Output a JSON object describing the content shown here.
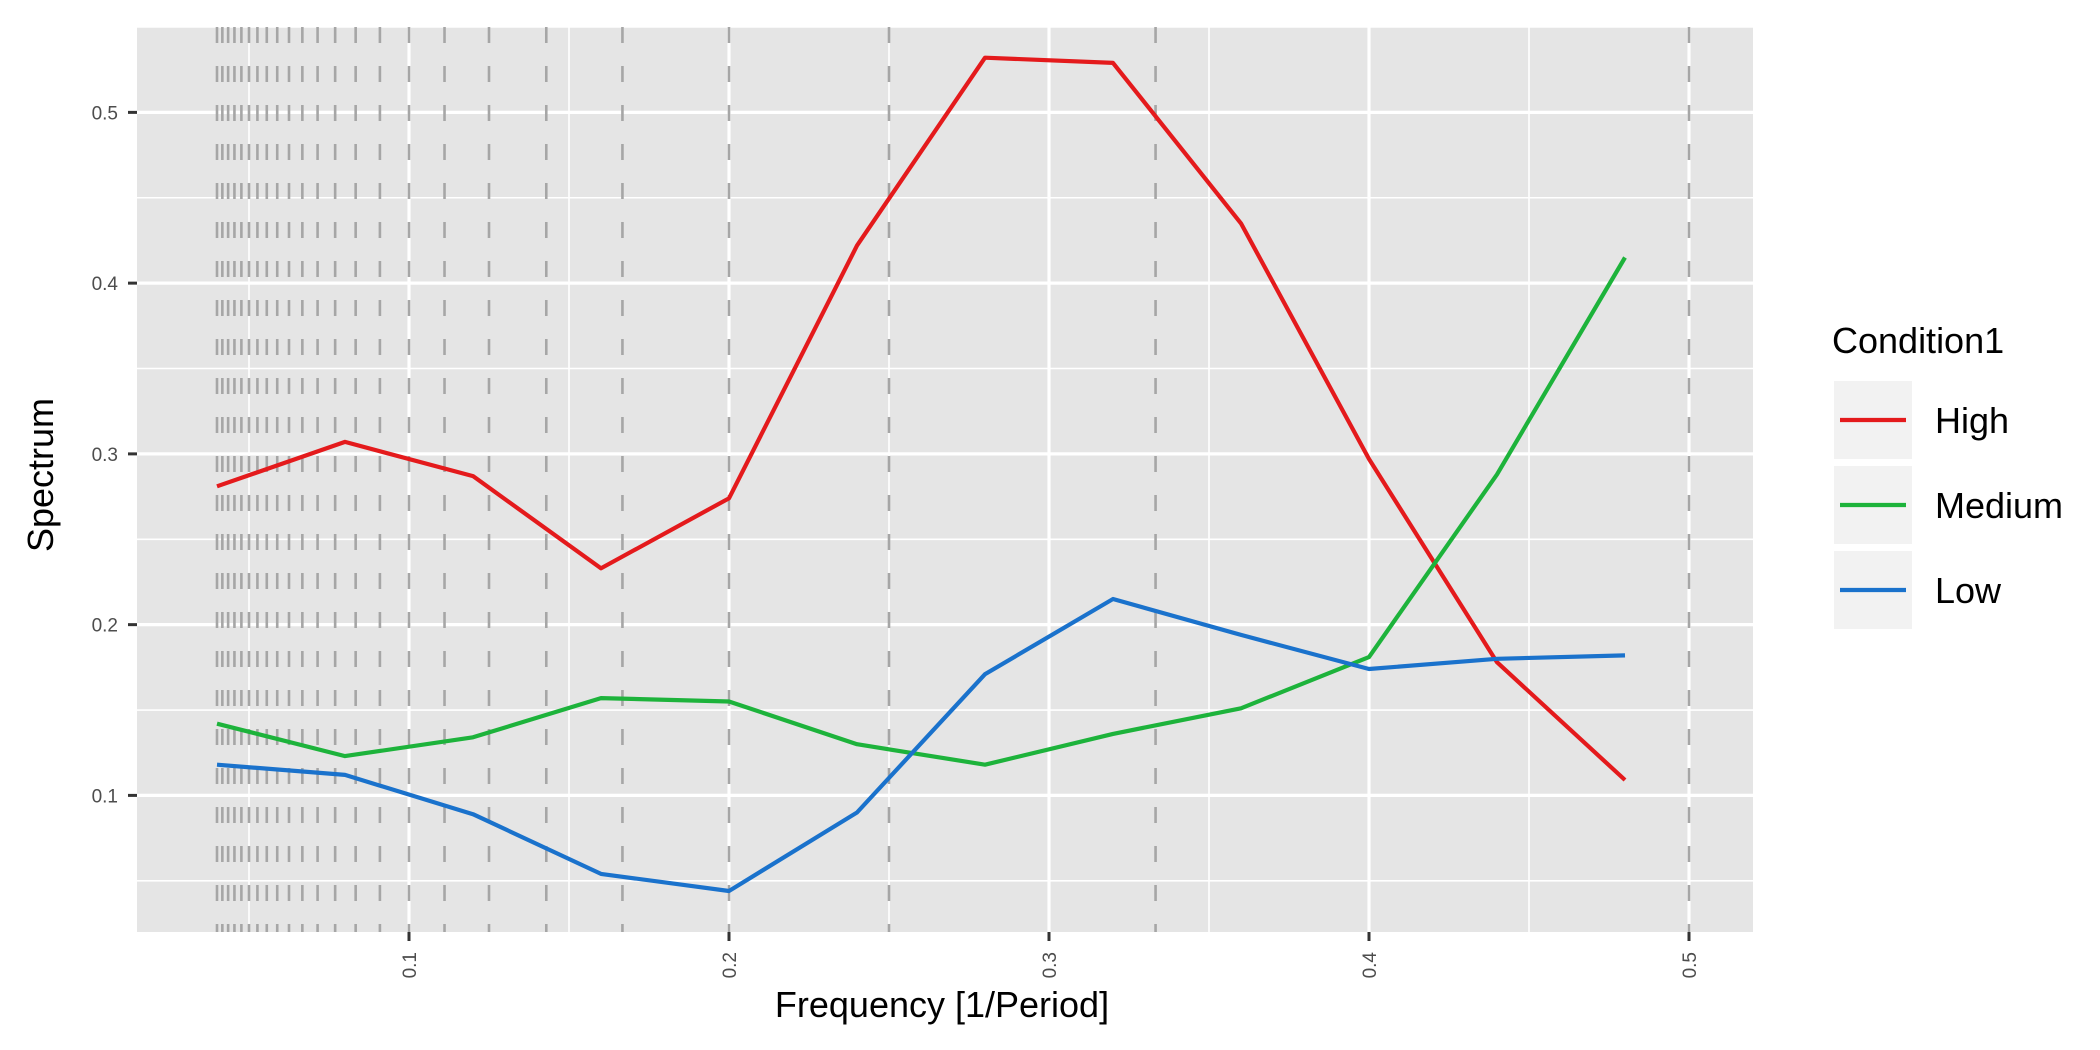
{
  "chart_data": {
    "type": "line",
    "title": "",
    "xlabel": "Frequency [1/Period]",
    "ylabel": "Spectrum",
    "xlim": [
      0.015,
      0.52
    ],
    "ylim": [
      0.02,
      0.55
    ],
    "x_ticks": [
      0.1,
      0.2,
      0.3,
      0.4,
      0.5
    ],
    "x_tick_labels": [
      "0.1",
      "0.2",
      "0.3",
      "0.4",
      "0.5"
    ],
    "y_ticks": [
      0.1,
      0.2,
      0.3,
      0.4,
      0.5
    ],
    "y_tick_labels": [
      "0.1",
      "0.2",
      "0.3",
      "0.4",
      "0.5"
    ],
    "x_minor_ticks": [
      0.05,
      0.15,
      0.25,
      0.35,
      0.45
    ],
    "y_minor_ticks": [
      0.05,
      0.15,
      0.25,
      0.35,
      0.45,
      0.55
    ],
    "grid": true,
    "panel_background": "#e5e5e5",
    "grid_color": "#ffffff",
    "reference_lines": {
      "description": "dashed vertical lines at frequencies 1/k",
      "color": "#a6a6a6",
      "x": [
        0.04,
        0.04167,
        0.04348,
        0.04545,
        0.04762,
        0.05,
        0.05263,
        0.05556,
        0.05882,
        0.0625,
        0.06667,
        0.07143,
        0.07692,
        0.08333,
        0.09091,
        0.1,
        0.1111,
        0.125,
        0.1429,
        0.1667,
        0.2,
        0.25,
        0.3333,
        0.5
      ]
    },
    "legend": {
      "title": "Condition1",
      "position": "right"
    },
    "x": [
      0.04,
      0.08,
      0.12,
      0.16,
      0.2,
      0.24,
      0.28,
      0.32,
      0.36,
      0.4,
      0.44,
      0.48
    ],
    "series": [
      {
        "name": "High",
        "color": "#e41a1c",
        "values": [
          0.281,
          0.307,
          0.287,
          0.233,
          0.274,
          0.422,
          0.532,
          0.529,
          0.435,
          0.297,
          0.178,
          0.109
        ]
      },
      {
        "name": "Medium",
        "color": "#1db33b",
        "values": [
          0.142,
          0.123,
          0.134,
          0.157,
          0.155,
          0.13,
          0.118,
          0.136,
          0.151,
          0.181,
          0.288,
          0.415
        ]
      },
      {
        "name": "Low",
        "color": "#1a72cc",
        "values": [
          0.118,
          0.112,
          0.089,
          0.054,
          0.044,
          0.09,
          0.171,
          0.215,
          0.194,
          0.174,
          0.18,
          0.182
        ]
      }
    ]
  }
}
